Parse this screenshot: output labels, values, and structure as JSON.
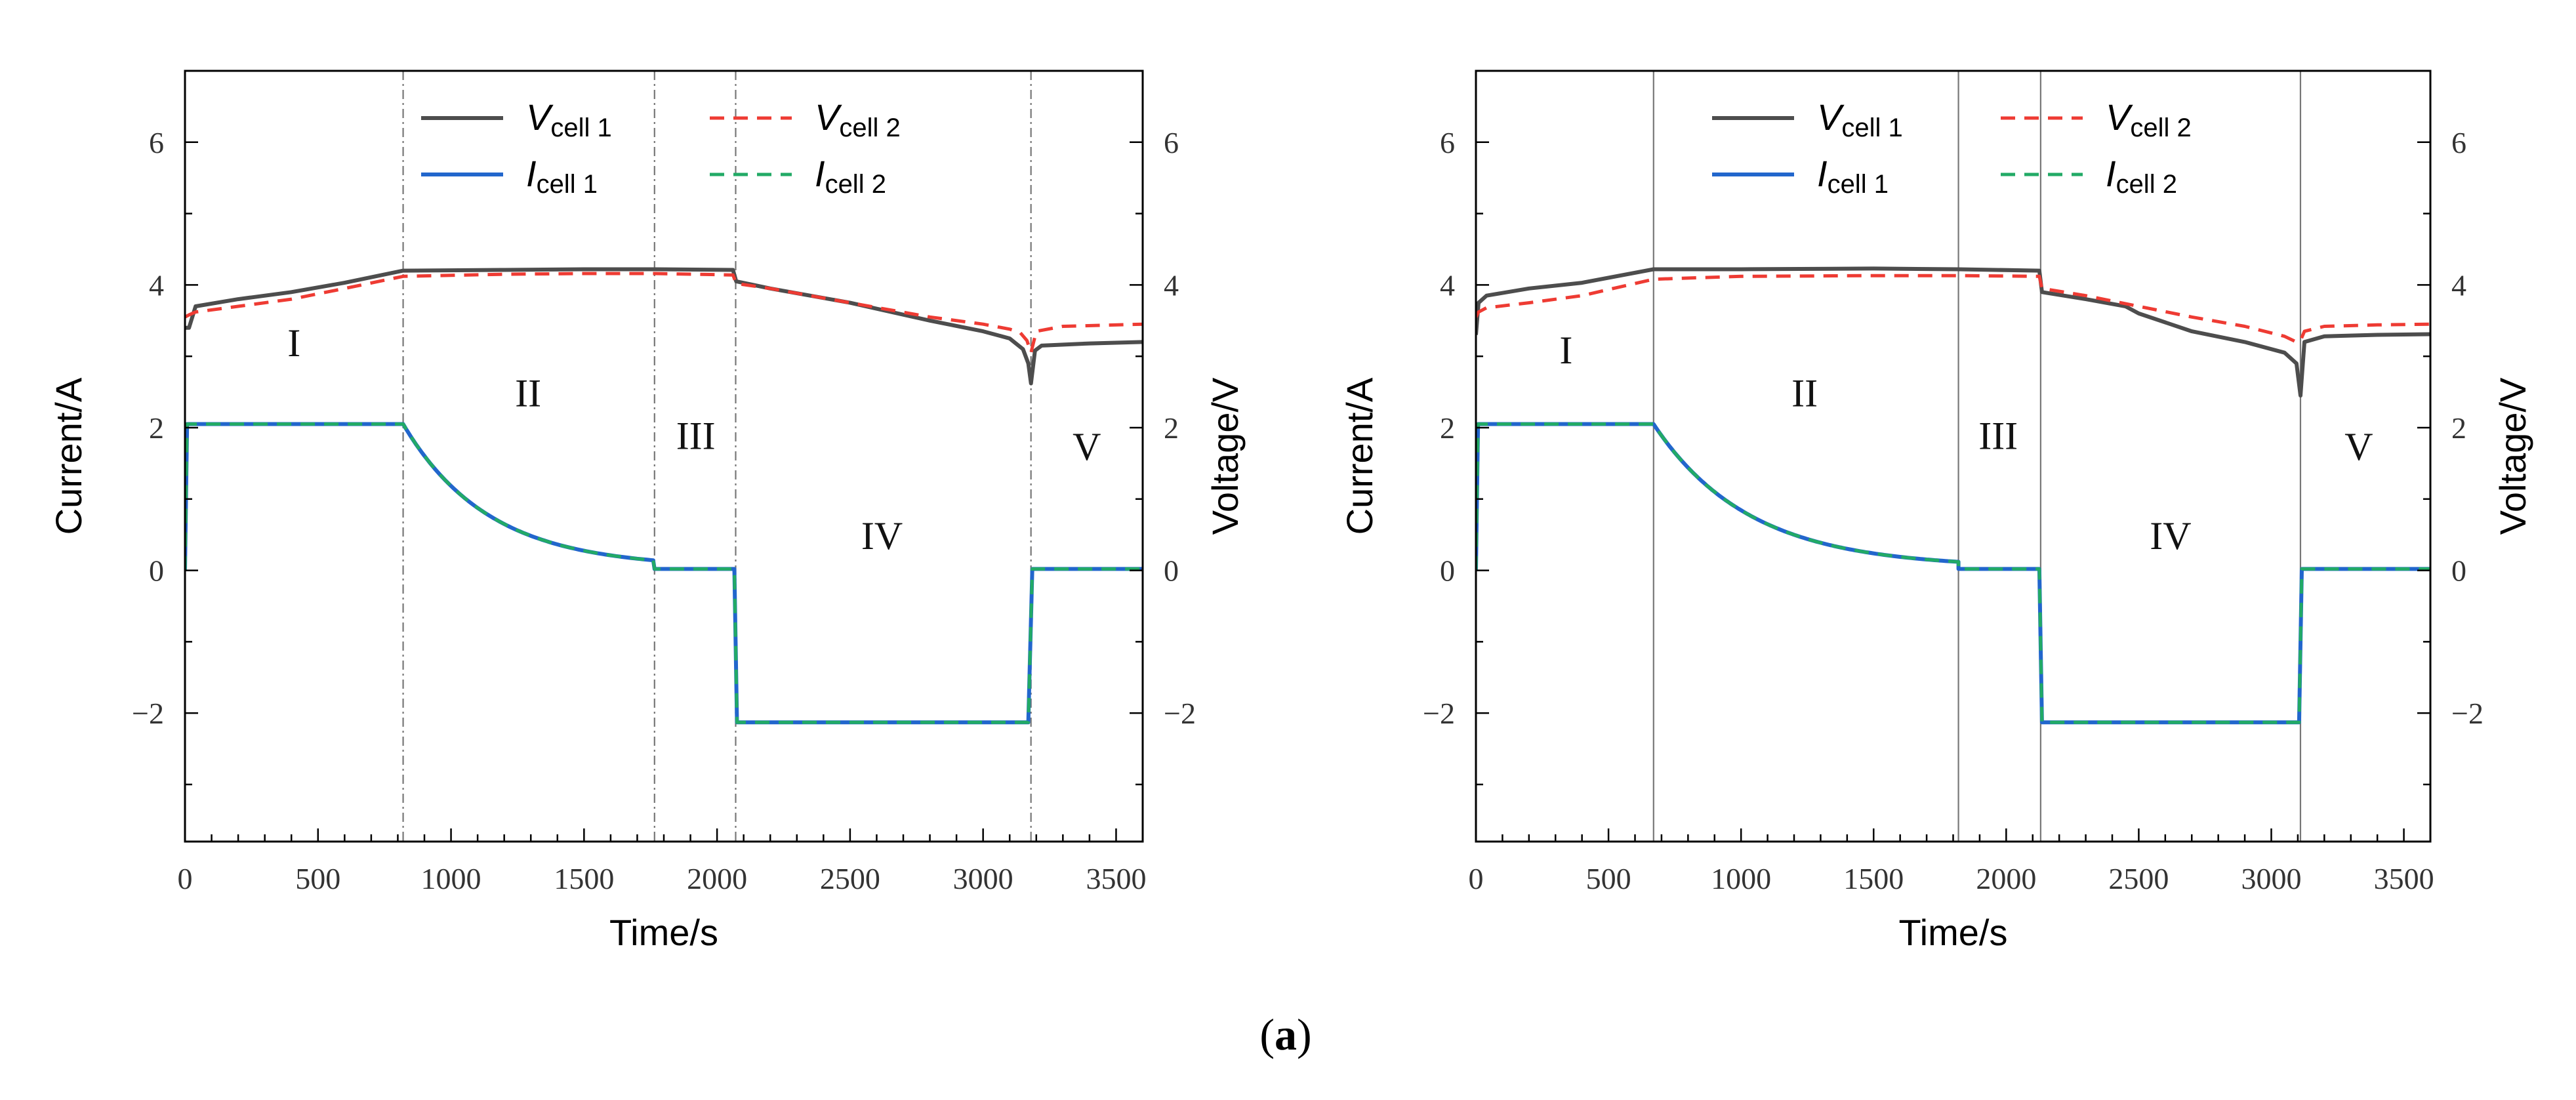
{
  "figure_caption": "(a)",
  "colors": {
    "v1": "#4d4d4d",
    "v2": "#ee3b33",
    "i1": "#2266cc",
    "i2": "#22aa66",
    "axis": "#000000",
    "divider": "#777777"
  },
  "chart_data": [
    {
      "type": "line",
      "xlabel": "Time/s",
      "ylabel_left": "Current/A",
      "ylabel_right": "Voltage/V",
      "xlim": [
        0,
        3600
      ],
      "ylim": [
        -3.8,
        7
      ],
      "xticks": [
        0,
        500,
        1000,
        1500,
        2000,
        2500,
        3000,
        3500
      ],
      "yticks": [
        -2,
        0,
        2,
        4,
        6
      ],
      "ytick_labels": [
        "−2",
        "0",
        "2",
        "4",
        "6"
      ],
      "legend": [
        {
          "name": "V",
          "sub": "cell 1",
          "key": "v1",
          "style": "solid"
        },
        {
          "name": "V",
          "sub": "cell 2",
          "key": "v2",
          "style": "dashed"
        },
        {
          "name": "I",
          "sub": "cell 1",
          "key": "i1",
          "style": "solid"
        },
        {
          "name": "I",
          "sub": "cell 2",
          "key": "i2",
          "style": "dashed"
        }
      ],
      "dividers": [
        820,
        1765,
        2070,
        3180
      ],
      "divider_style": "dashdot",
      "regions": [
        {
          "label": "I",
          "x": 410,
          "y": 3.0
        },
        {
          "label": "II",
          "x": 1290,
          "y": 2.3
        },
        {
          "label": "III",
          "x": 1920,
          "y": 1.7
        },
        {
          "label": "IV",
          "x": 2620,
          "y": 0.3
        },
        {
          "label": "V",
          "x": 3390,
          "y": 1.55
        }
      ],
      "series": [
        {
          "name": "V cell 1",
          "key": "v1",
          "x": [
            0,
            15,
            40,
            200,
            400,
            600,
            820,
            1200,
            1500,
            1765,
            2060,
            2072,
            2200,
            2500,
            2800,
            3000,
            3100,
            3150,
            3170,
            3180,
            3195,
            3220,
            3400,
            3600
          ],
          "y": [
            3.4,
            3.4,
            3.7,
            3.8,
            3.9,
            4.03,
            4.2,
            4.21,
            4.22,
            4.22,
            4.21,
            4.05,
            3.95,
            3.75,
            3.5,
            3.35,
            3.25,
            3.1,
            2.9,
            2.62,
            3.08,
            3.15,
            3.18,
            3.2
          ]
        },
        {
          "name": "V cell 2",
          "key": "v2",
          "x": [
            0,
            15,
            40,
            200,
            400,
            600,
            820,
            1200,
            1500,
            1765,
            2060,
            2072,
            2200,
            2500,
            2800,
            3000,
            3100,
            3140,
            3165,
            3180,
            3200,
            3300,
            3600
          ],
          "y": [
            3.55,
            3.58,
            3.62,
            3.7,
            3.8,
            3.95,
            4.12,
            4.15,
            4.16,
            4.16,
            4.14,
            4.02,
            3.95,
            3.75,
            3.55,
            3.45,
            3.38,
            3.33,
            3.22,
            3.05,
            3.35,
            3.42,
            3.45
          ]
        },
        {
          "name": "I cell 1",
          "key": "i1",
          "x": [
            0,
            8,
            820,
            1765,
            1765,
            2065,
            2075,
            3170,
            3185,
            3600
          ],
          "y": [
            0,
            2.05,
            2.05,
            "decay",
            0.02,
            0.02,
            -2.13,
            -2.13,
            0.02,
            0.02
          ]
        },
        {
          "name": "I cell 2",
          "key": "i2",
          "x": [
            0,
            8,
            820,
            1765,
            1765,
            2065,
            2075,
            3170,
            3185,
            3600
          ],
          "y": [
            0,
            2.05,
            2.05,
            "decay",
            0.02,
            0.02,
            -2.13,
            -2.13,
            0.02,
            0.02
          ]
        }
      ],
      "decay": {
        "start_x": 820,
        "end_x": 1765,
        "start_y": 2.05,
        "end_y": 0.14,
        "tau": 320
      }
    },
    {
      "type": "line",
      "xlabel": "Time/s",
      "ylabel_left": "Current/A",
      "ylabel_right": "Voltage/V",
      "xlim": [
        0,
        3600
      ],
      "ylim": [
        -3.8,
        7
      ],
      "xticks": [
        0,
        500,
        1000,
        1500,
        2000,
        2500,
        3000,
        3500
      ],
      "yticks": [
        -2,
        0,
        2,
        4,
        6
      ],
      "ytick_labels": [
        "−2",
        "0",
        "2",
        "4",
        "6"
      ],
      "legend": [
        {
          "name": "V",
          "sub": "cell 1",
          "key": "v1",
          "style": "solid"
        },
        {
          "name": "V",
          "sub": "cell 2",
          "key": "v2",
          "style": "dashed"
        },
        {
          "name": "I",
          "sub": "cell 1",
          "key": "i1",
          "style": "solid"
        },
        {
          "name": "I",
          "sub": "cell 2",
          "key": "i2",
          "style": "dashed"
        }
      ],
      "dividers": [
        670,
        1820,
        2130,
        3110
      ],
      "divider_style": "solid",
      "regions": [
        {
          "label": "I",
          "x": 340,
          "y": 2.9
        },
        {
          "label": "II",
          "x": 1240,
          "y": 2.3
        },
        {
          "label": "III",
          "x": 1970,
          "y": 1.7
        },
        {
          "label": "IV",
          "x": 2620,
          "y": 0.3
        },
        {
          "label": "V",
          "x": 3330,
          "y": 1.55
        }
      ],
      "series": [
        {
          "name": "V cell 1",
          "key": "v1",
          "x": [
            0,
            10,
            40,
            200,
            400,
            670,
            1000,
            1500,
            1820,
            2125,
            2135,
            2300,
            2450,
            2500,
            2700,
            2900,
            3050,
            3095,
            3110,
            3125,
            3200,
            3400,
            3600
          ],
          "y": [
            3.3,
            3.75,
            3.85,
            3.95,
            4.03,
            4.22,
            4.22,
            4.23,
            4.22,
            4.2,
            3.9,
            3.8,
            3.7,
            3.6,
            3.35,
            3.2,
            3.05,
            2.9,
            2.45,
            3.2,
            3.28,
            3.3,
            3.31
          ]
        },
        {
          "name": "V cell 2",
          "key": "v2",
          "x": [
            0,
            10,
            40,
            200,
            400,
            670,
            1000,
            1500,
            1820,
            2125,
            2135,
            2300,
            2500,
            2700,
            2900,
            3050,
            3095,
            3110,
            3125,
            3200,
            3400,
            3600
          ],
          "y": [
            3.55,
            3.62,
            3.68,
            3.75,
            3.85,
            4.08,
            4.12,
            4.13,
            4.13,
            4.12,
            3.95,
            3.85,
            3.7,
            3.55,
            3.42,
            3.28,
            3.2,
            3.22,
            3.35,
            3.42,
            3.44,
            3.45
          ]
        },
        {
          "name": "I cell 1",
          "key": "i1",
          "x": [
            0,
            8,
            670,
            1820,
            1820,
            2125,
            2135,
            3105,
            3115,
            3600
          ],
          "y": [
            0,
            2.05,
            2.05,
            "decay",
            0.02,
            0.02,
            -2.13,
            -2.13,
            0.02,
            0.02
          ]
        },
        {
          "name": "I cell 2",
          "key": "i2",
          "x": [
            0,
            8,
            670,
            1820,
            1820,
            2125,
            2135,
            3105,
            3115,
            3600
          ],
          "y": [
            0,
            2.05,
            2.05,
            "decay",
            0.02,
            0.02,
            -2.13,
            -2.13,
            0.02,
            0.02
          ]
        }
      ],
      "decay": {
        "start_x": 670,
        "end_x": 1820,
        "start_y": 2.05,
        "end_y": 0.12,
        "tau": 360
      }
    }
  ]
}
